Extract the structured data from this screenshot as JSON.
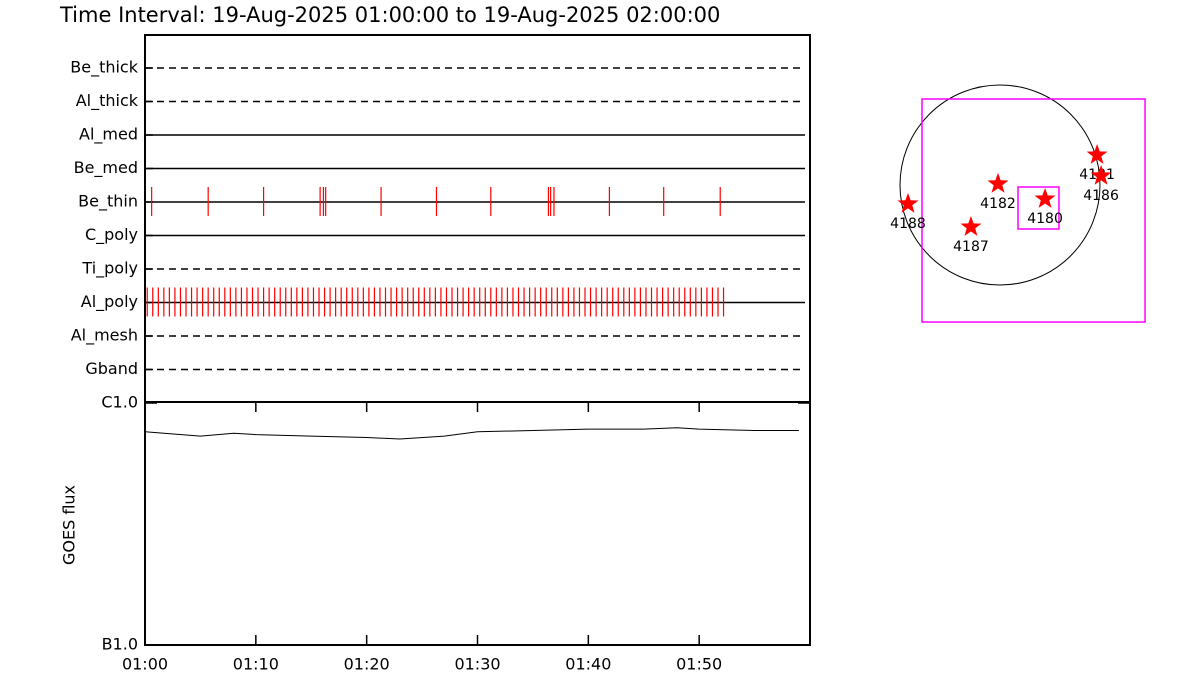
{
  "chart_data": [
    {
      "type": "timeline",
      "title": "Time Interval: 19-Aug-2025 01:00:00 to 19-Aug-2025 02:00:00",
      "categories": [
        "Be_thick",
        "Al_thick",
        "Al_med",
        "Be_med",
        "Be_thin",
        "C_poly",
        "Ti_poly",
        "Al_poly",
        "Al_mesh",
        "Gband"
      ],
      "line_styles": [
        "dashed",
        "dashed",
        "solid",
        "solid",
        "solid",
        "solid",
        "dashed",
        "solid",
        "dashed",
        "dashed"
      ],
      "color": "#ff0000",
      "xlim": [
        0,
        60
      ],
      "events": [
        [],
        [],
        [],
        [],
        [
          0.6,
          5.7,
          10.7,
          15.8,
          16.1,
          16.3,
          21.3,
          26.3,
          31.2,
          36.4,
          36.6,
          36.9,
          41.9,
          46.8,
          51.9
        ],
        [],
        [],
        [
          0.2,
          0.7,
          1.2,
          1.7,
          2.2,
          2.7,
          3.2,
          3.7,
          4.2,
          4.7,
          5.2,
          5.7,
          6.2,
          6.7,
          7.2,
          7.7,
          8.2,
          8.7,
          9.2,
          9.7,
          10.2,
          10.7,
          11.2,
          11.7,
          12.2,
          12.7,
          13.2,
          13.7,
          14.2,
          14.7,
          15.2,
          15.7,
          16.2,
          16.7,
          17.2,
          17.7,
          18.2,
          18.7,
          19.2,
          19.7,
          20.2,
          20.7,
          21.2,
          21.7,
          22.2,
          22.7,
          23.2,
          23.7,
          24.2,
          24.7,
          25.2,
          25.7,
          26.2,
          26.7,
          27.2,
          27.7,
          28.2,
          28.7,
          29.2,
          29.7,
          30.2,
          30.7,
          31.2,
          31.7,
          32.2,
          32.7,
          33.2,
          33.7,
          34.2,
          34.7,
          35.2,
          35.7,
          36.2,
          36.7,
          37.2,
          37.7,
          38.2,
          38.7,
          39.2,
          39.7,
          40.2,
          40.7,
          41.2,
          41.7,
          42.2,
          42.7,
          43.2,
          43.7,
          44.2,
          44.7,
          45.2,
          45.7,
          46.2,
          46.7,
          47.2,
          47.7,
          48.2,
          48.7,
          49.2,
          49.7,
          50.2,
          50.7,
          51.2,
          51.7,
          52.2
        ],
        [],
        []
      ]
    },
    {
      "type": "line",
      "ylabel": "GOES flux",
      "log_scale": true,
      "color": "#000000",
      "xlim": [
        0,
        60
      ],
      "xticks": [
        {
          "value": 0,
          "label": "01:00"
        },
        {
          "value": 10,
          "label": "01:10"
        },
        {
          "value": 20,
          "label": "01:20"
        },
        {
          "value": 30,
          "label": "01:30"
        },
        {
          "value": 40,
          "label": "01:40"
        },
        {
          "value": 50,
          "label": "01:50"
        }
      ],
      "ylim": [
        1e-07,
        1e-06
      ],
      "yticks": [
        {
          "value": 1e-07,
          "label": "B1.0"
        },
        {
          "value": 1e-06,
          "label": "C1.0"
        }
      ],
      "x": [
        0,
        5,
        8,
        10,
        15,
        20,
        23,
        27,
        30,
        35,
        40,
        45,
        48,
        50,
        55,
        59
      ],
      "values": [
        7.6e-07,
        7.3e-07,
        7.5e-07,
        7.4e-07,
        7.3e-07,
        7.2e-07,
        7.1e-07,
        7.3e-07,
        7.6e-07,
        7.7e-07,
        7.8e-07,
        7.8e-07,
        7.9e-07,
        7.8e-07,
        7.7e-07,
        7.7e-07
      ]
    },
    {
      "type": "map",
      "sun_radius": 950,
      "boxes": [
        {
          "xlim": [
            -741,
            1378
          ],
          "ylim": [
            -1302,
            817
          ],
          "color": "#ff00ff"
        },
        {
          "xlim": [
            171,
            560
          ],
          "ylim": [
            -418,
            -19
          ],
          "color": "#ff00ff"
        }
      ],
      "color": "#ff0000",
      "labels": [
        "4188",
        "4187",
        "4182",
        "4180",
        "4181",
        "4186"
      ],
      "x": [
        -874,
        -276,
        -19,
        428,
        922,
        960
      ],
      "y": [
        -180,
        -399,
        10,
        -133,
        285,
        86
      ]
    }
  ]
}
